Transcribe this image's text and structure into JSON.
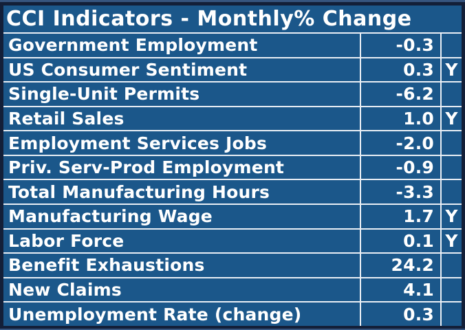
{
  "chart_data": {
    "type": "table",
    "title": "CCI Indicators - Monthly% Change",
    "rows": [
      {
        "indicator": "Government Employment",
        "value": "-0.3",
        "flag": ""
      },
      {
        "indicator": "US Consumer Sentiment",
        "value": "0.3",
        "flag": "Y"
      },
      {
        "indicator": "Single-Unit Permits",
        "value": "-6.2",
        "flag": ""
      },
      {
        "indicator": "Retail Sales",
        "value": "1.0",
        "flag": "Y"
      },
      {
        "indicator": "Employment Services Jobs",
        "value": "-2.0",
        "flag": ""
      },
      {
        "indicator": "Priv. Serv-Prod Employment",
        "value": "-0.9",
        "flag": ""
      },
      {
        "indicator": "Total Manufacturing Hours",
        "value": "-3.3",
        "flag": ""
      },
      {
        "indicator": "Manufacturing Wage",
        "value": "1.7",
        "flag": "Y"
      },
      {
        "indicator": "Labor Force",
        "value": "0.1",
        "flag": "Y"
      },
      {
        "indicator": "Benefit Exhaustions",
        "value": "24.2",
        "flag": ""
      },
      {
        "indicator": "New Claims",
        "value": "4.1",
        "flag": ""
      },
      {
        "indicator": "Unemployment Rate (change)",
        "value": "0.3",
        "flag": ""
      }
    ],
    "layout": "single merged title row above 12 data rows; value column right-aligned; flag column centered"
  },
  "colors": {
    "cell_background": "#1B578A",
    "outer_border": "#131F38",
    "gridline": "#EAEFF5",
    "text": "#FFFFFF",
    "edge_strip": "#36557F"
  }
}
